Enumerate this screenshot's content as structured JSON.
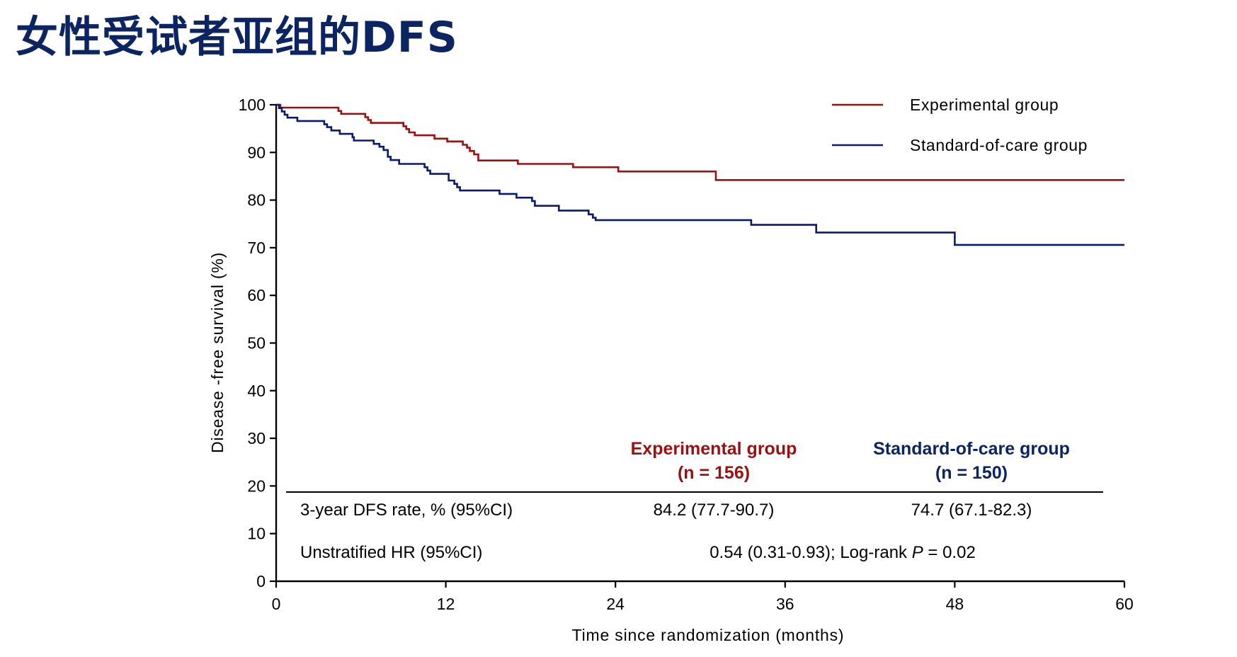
{
  "slide": {
    "title": "女性受试者亚组的DFS"
  },
  "colors": {
    "experimental": "#9b1111",
    "standard": "#0c1a6b",
    "axis": "#000000",
    "title": "#0c2461"
  },
  "chart_data": {
    "type": "line",
    "step": true,
    "title": "",
    "xlabel": "Time since randomization (months)",
    "ylabel": "Disease -free survival (%)",
    "xlim": [
      0,
      60
    ],
    "ylim": [
      0,
      100
    ],
    "x_ticks": [
      "0",
      "12",
      "24",
      "36",
      "48",
      "60"
    ],
    "x_tick_values": [
      0,
      12,
      24,
      36,
      48,
      60
    ],
    "y_ticks": [
      "0",
      "10",
      "20",
      "30",
      "40",
      "50",
      "60",
      "70",
      "80",
      "90",
      "100"
    ],
    "y_tick_values": [
      0,
      10,
      20,
      30,
      40,
      50,
      60,
      70,
      80,
      90,
      100
    ],
    "legend_position": "top-right",
    "series": [
      {
        "name": "Experimental group",
        "color": "#9b1111",
        "points": [
          [
            0,
            100
          ],
          [
            0.3,
            99.4
          ],
          [
            4.2,
            99.4
          ],
          [
            4.4,
            98.7
          ],
          [
            4.6,
            98.1
          ],
          [
            6.1,
            98.1
          ],
          [
            6.3,
            97.4
          ],
          [
            6.5,
            96.8
          ],
          [
            6.7,
            96.2
          ],
          [
            8.8,
            96.2
          ],
          [
            9.0,
            95.5
          ],
          [
            9.2,
            94.9
          ],
          [
            9.4,
            94.2
          ],
          [
            9.8,
            93.6
          ],
          [
            11.0,
            93.6
          ],
          [
            11.2,
            92.9
          ],
          [
            11.9,
            92.9
          ],
          [
            12.1,
            92.3
          ],
          [
            13.0,
            92.3
          ],
          [
            13.2,
            91.6
          ],
          [
            13.5,
            91.0
          ],
          [
            13.7,
            90.3
          ],
          [
            14.0,
            89.6
          ],
          [
            14.3,
            88.3
          ],
          [
            16.9,
            88.3
          ],
          [
            17.1,
            87.6
          ],
          [
            20.8,
            87.6
          ],
          [
            21.0,
            86.9
          ],
          [
            24.0,
            86.9
          ],
          [
            24.2,
            86.0
          ],
          [
            30.9,
            86.0
          ],
          [
            31.1,
            84.2
          ],
          [
            60,
            84.2
          ]
        ]
      },
      {
        "name": "Standard-of-care group",
        "color": "#0c1a6b",
        "points": [
          [
            0,
            100
          ],
          [
            0.2,
            99.3
          ],
          [
            0.4,
            98.6
          ],
          [
            0.6,
            97.9
          ],
          [
            0.8,
            97.3
          ],
          [
            1.3,
            97.3
          ],
          [
            1.5,
            96.6
          ],
          [
            3.2,
            96.6
          ],
          [
            3.4,
            95.9
          ],
          [
            3.6,
            95.3
          ],
          [
            3.9,
            94.6
          ],
          [
            4.3,
            94.6
          ],
          [
            4.5,
            93.9
          ],
          [
            5.2,
            93.9
          ],
          [
            5.4,
            93.2
          ],
          [
            5.5,
            92.5
          ],
          [
            6.7,
            92.5
          ],
          [
            6.9,
            91.8
          ],
          [
            7.3,
            91.2
          ],
          [
            7.6,
            90.5
          ],
          [
            7.9,
            89.1
          ],
          [
            8.1,
            88.4
          ],
          [
            8.5,
            88.4
          ],
          [
            8.7,
            87.6
          ],
          [
            10.3,
            87.6
          ],
          [
            10.5,
            86.9
          ],
          [
            10.7,
            86.2
          ],
          [
            10.9,
            85.5
          ],
          [
            12.0,
            85.5
          ],
          [
            12.2,
            84.1
          ],
          [
            12.6,
            83.4
          ],
          [
            12.8,
            82.7
          ],
          [
            13.0,
            82.0
          ],
          [
            15.6,
            82.0
          ],
          [
            15.8,
            81.3
          ],
          [
            16.8,
            81.3
          ],
          [
            17.0,
            80.5
          ],
          [
            17.9,
            80.5
          ],
          [
            18.1,
            79.8
          ],
          [
            18.3,
            78.8
          ],
          [
            19.8,
            78.8
          ],
          [
            20.0,
            77.8
          ],
          [
            21.9,
            77.8
          ],
          [
            22.1,
            77.0
          ],
          [
            22.4,
            76.3
          ],
          [
            22.6,
            75.8
          ],
          [
            33.4,
            75.8
          ],
          [
            33.6,
            74.8
          ],
          [
            38.0,
            74.8
          ],
          [
            38.2,
            73.2
          ],
          [
            47.8,
            73.2
          ],
          [
            48.0,
            70.6
          ],
          [
            60,
            70.6
          ]
        ]
      }
    ],
    "summary_table": {
      "columns": [
        "",
        "Experimental group",
        "Standard-of-care group"
      ],
      "column_subtitles": [
        "",
        "(n = 156)",
        "(n = 150)"
      ],
      "rows": [
        {
          "label": "3-year DFS rate, % (95%CI)",
          "experimental": "84.2 (77.7-90.7)",
          "standard": "74.7 (67.1-82.3)"
        },
        {
          "label": "Unstratified HR (95%CI)",
          "hr_prefix": "0.54 (0.31-0.93); Log-rank ",
          "p_label": "P",
          "p_value": " = 0.02"
        }
      ]
    }
  }
}
